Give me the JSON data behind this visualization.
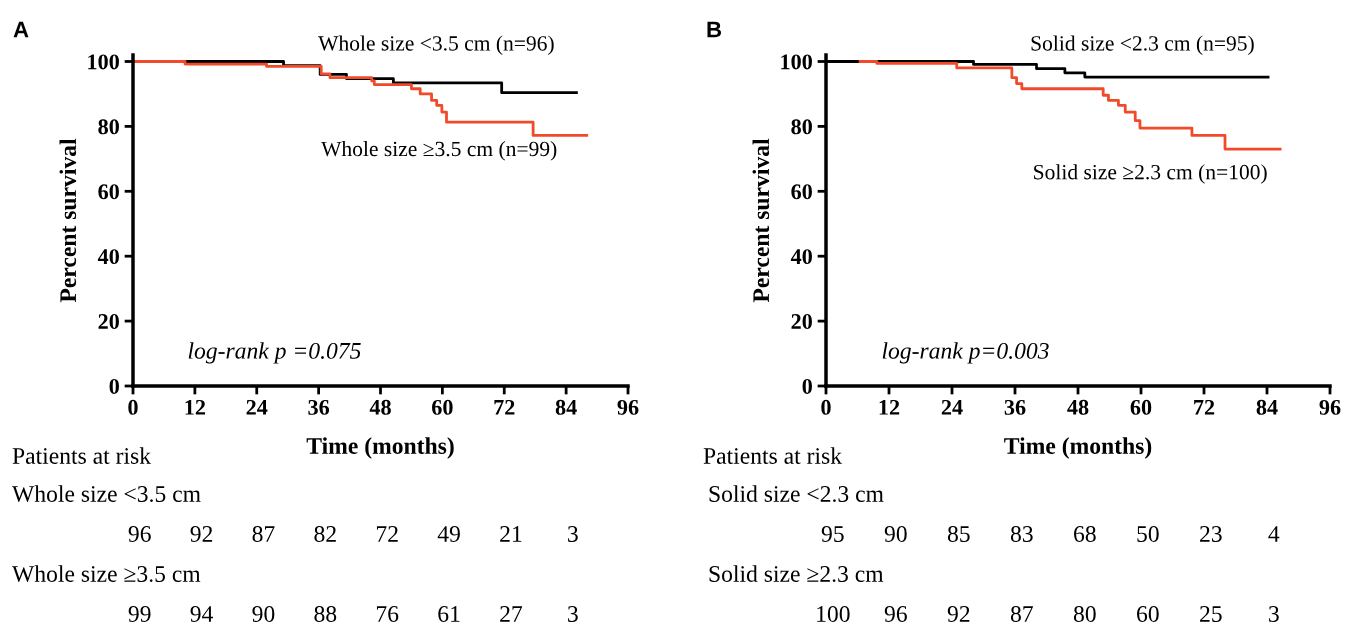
{
  "chart_data": [
    {
      "type": "step",
      "title": "A",
      "xlabel": "Time (months)",
      "ylabel": "Percent survival",
      "xlim": [
        0,
        96
      ],
      "ylim": [
        0,
        102
      ],
      "xticks": [
        0,
        12,
        24,
        36,
        48,
        60,
        72,
        84,
        96
      ],
      "yticks": [
        0,
        20,
        40,
        60,
        80,
        100
      ],
      "grid": false,
      "legend": false,
      "marker": "none",
      "line_style": "solid",
      "series": [
        {
          "name": "Whole size <3.5 cm (n=96)",
          "color": "#000000",
          "x": [
            0,
            29.2,
            36.3,
            41.4,
            50.5,
            71.5,
            86
          ],
          "values": [
            100,
            98.7,
            96,
            94.7,
            93.4,
            90.4,
            90.4
          ]
        },
        {
          "name": "Whole size ≥3.5 cm (n=99)",
          "color": "#f04a2a",
          "x": [
            0,
            10.1,
            25.9,
            36.5,
            38.2,
            46.3,
            46.8,
            54,
            55.7,
            57.9,
            58.9,
            59.9,
            60.8,
            77.6,
            88
          ],
          "values": [
            100,
            99.2,
            98.5,
            96.2,
            95,
            94,
            92.9,
            91.6,
            90,
            88,
            86.5,
            84.4,
            81.3,
            77.2,
            77.2
          ]
        }
      ],
      "annotations": [
        "log-rank p =0.075",
        "Patients at risk",
        "Whole size <3.5 cm",
        "96",
        "92",
        "87",
        "82",
        "72",
        "49",
        "21",
        "3",
        "Whole size ≥3.5 cm",
        "99",
        "94",
        "90",
        "88",
        "76",
        "61",
        "27",
        "3"
      ]
    },
    {
      "type": "step",
      "title": "B",
      "xlabel": "Time (months)",
      "ylabel": "Percent survival",
      "xlim": [
        0,
        96
      ],
      "ylim": [
        0,
        102
      ],
      "xticks": [
        0,
        12,
        24,
        36,
        48,
        60,
        72,
        84,
        96
      ],
      "yticks": [
        0,
        20,
        40,
        60,
        80,
        100
      ],
      "grid": false,
      "legend": false,
      "marker": "none",
      "line_style": "solid",
      "series": [
        {
          "name": "Solid size <2.3 cm (n=95)",
          "color": "#000000",
          "x": [
            0,
            28.1,
            40.1,
            45.5,
            49.3,
            84.2
          ],
          "values": [
            100,
            99.1,
            97.8,
            96.5,
            95.2,
            95.2
          ]
        },
        {
          "name": "Solid size ≥2.3 cm (n=100)",
          "color": "#f04a2a",
          "x": [
            6.5,
            9.7,
            24.9,
            35.4,
            36.3,
            37.3,
            52.8,
            53.8,
            55.7,
            57,
            58.9,
            59.8,
            69.7,
            76,
            86.5
          ],
          "values": [
            100,
            99.4,
            98,
            95,
            93.2,
            91.6,
            89.6,
            88,
            86.5,
            84.4,
            81.8,
            79.5,
            77.2,
            73,
            73
          ]
        }
      ],
      "annotations": [
        "log-rank p=0.003",
        "Patients at risk",
        "Solid size <2.3 cm",
        "95",
        "90",
        "85",
        "83",
        "68",
        "50",
        "23",
        "4",
        "Solid size ≥2.3 cm",
        "100",
        "96",
        "92",
        "87",
        "80",
        "60",
        "25",
        "3"
      ]
    }
  ]
}
